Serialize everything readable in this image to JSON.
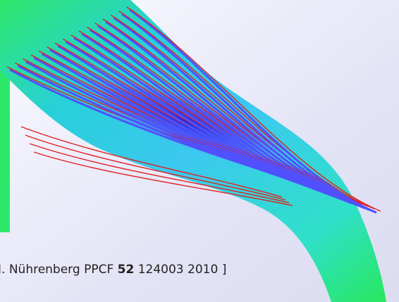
{
  "caption": {
    "authors": "J. Nührenberg",
    "journal": "PPCF",
    "volume": "52",
    "page": "124003",
    "year": "2010",
    "close": "]"
  }
}
